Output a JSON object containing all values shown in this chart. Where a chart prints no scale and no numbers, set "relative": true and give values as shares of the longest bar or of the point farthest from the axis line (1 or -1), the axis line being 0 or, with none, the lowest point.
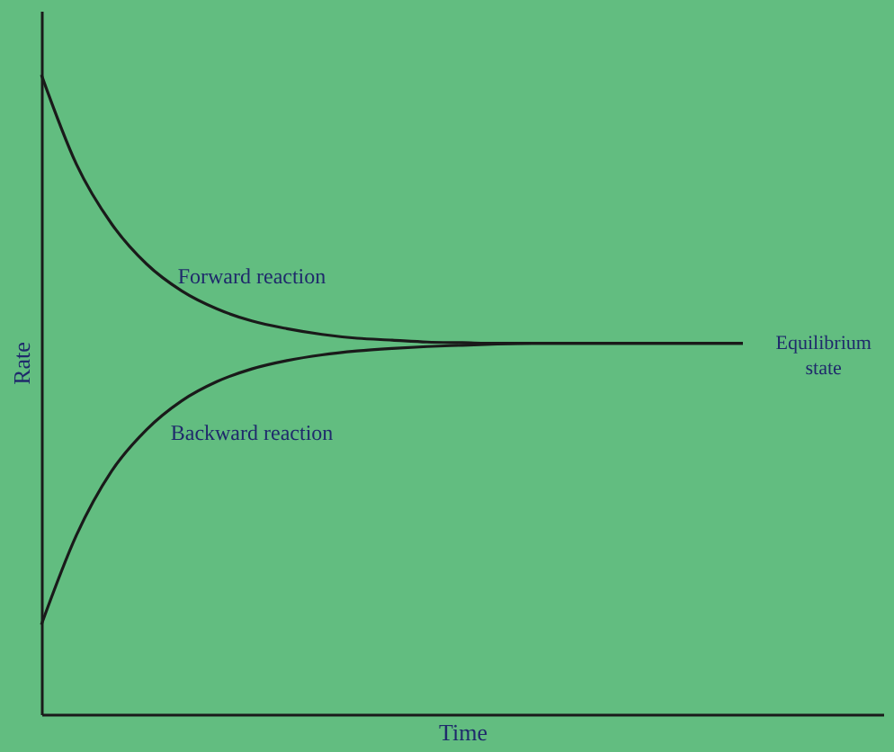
{
  "chart_data": {
    "type": "line",
    "relative": true,
    "xlabel": "Time",
    "ylabel": "Rate",
    "categories": [
      null,
      null,
      null,
      null,
      null,
      null,
      null,
      null,
      null,
      null,
      null,
      null,
      null,
      null,
      null,
      null,
      null,
      null,
      null,
      null,
      null
    ],
    "series": [
      {
        "name": "Forward reaction",
        "color": "#1a1a1a",
        "values": [
          1,
          0.86,
          0.767,
          0.704,
          0.662,
          0.634,
          0.615,
          0.603,
          0.594,
          0.588,
          0.585,
          0.582,
          0.581,
          0.58,
          0.58,
          0.58,
          0.58,
          0.58,
          0.58,
          0.58,
          0.58
        ]
      },
      {
        "name": "Backward reaction",
        "color": "#1a1a1a",
        "values": [
          0.14,
          0.28,
          0.38,
          0.445,
          0.49,
          0.52,
          0.54,
          0.553,
          0.562,
          0.568,
          0.572,
          0.575,
          0.577,
          0.579,
          0.58,
          0.58,
          0.58,
          0.58,
          0.58,
          0.58,
          0.58
        ]
      }
    ],
    "annotations": [
      "Equilibrium state"
    ],
    "marker": "none",
    "grid": false,
    "legend": false
  }
}
